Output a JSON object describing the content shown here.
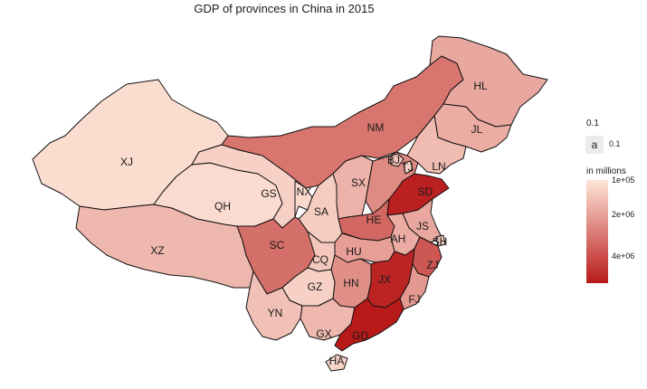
{
  "title": "GDP of provinces in China in 2015",
  "colors": {
    "low": "#fee5d8",
    "high": "#b81a1a",
    "border": "#111111",
    "background": "#ffffff"
  },
  "provinces": [
    {
      "code": "XJ",
      "level": 0.04
    },
    {
      "code": "XZ",
      "level": 0.22
    },
    {
      "code": "QH",
      "level": 0.05
    },
    {
      "code": "GS",
      "level": 0.1
    },
    {
      "code": "NM",
      "level": 0.55
    },
    {
      "code": "HL",
      "level": 0.3
    },
    {
      "code": "JL",
      "level": 0.28
    },
    {
      "code": "LN",
      "level": 0.2
    },
    {
      "code": "NX",
      "level": 0.06
    },
    {
      "code": "SA",
      "level": 0.12
    },
    {
      "code": "SX",
      "level": 0.25
    },
    {
      "code": "HE",
      "level": 0.62
    },
    {
      "code": "SD",
      "level": 0.97
    },
    {
      "code": "BJ",
      "level": 0.15
    },
    {
      "code": "TJ",
      "level": 0.1
    },
    {
      "code": "JS",
      "level": 0.3
    },
    {
      "code": "AH",
      "level": 0.28
    },
    {
      "code": "SH",
      "level": 0.15
    },
    {
      "code": "ZJ",
      "level": 0.7
    },
    {
      "code": "SC",
      "level": 0.58
    },
    {
      "code": "CQ",
      "level": 0.15
    },
    {
      "code": "HU",
      "level": 0.35
    },
    {
      "code": "HN",
      "level": 0.42
    },
    {
      "code": "JX",
      "level": 0.95
    },
    {
      "code": "FJ",
      "level": 0.38
    },
    {
      "code": "GZ",
      "level": 0.1
    },
    {
      "code": "YN",
      "level": 0.18
    },
    {
      "code": "GX",
      "level": 0.22
    },
    {
      "code": "GD",
      "level": 1.0
    },
    {
      "code": "HA",
      "level": 0.08
    }
  ],
  "legend_size": {
    "title": "0.1",
    "key_label": "a",
    "value_label": "0.1"
  },
  "legend_fill": {
    "title": "in millions",
    "ticks": [
      "1e+05",
      "2e+06",
      "4e+06"
    ],
    "tick_positions": [
      0.0,
      0.33,
      0.74
    ]
  }
}
